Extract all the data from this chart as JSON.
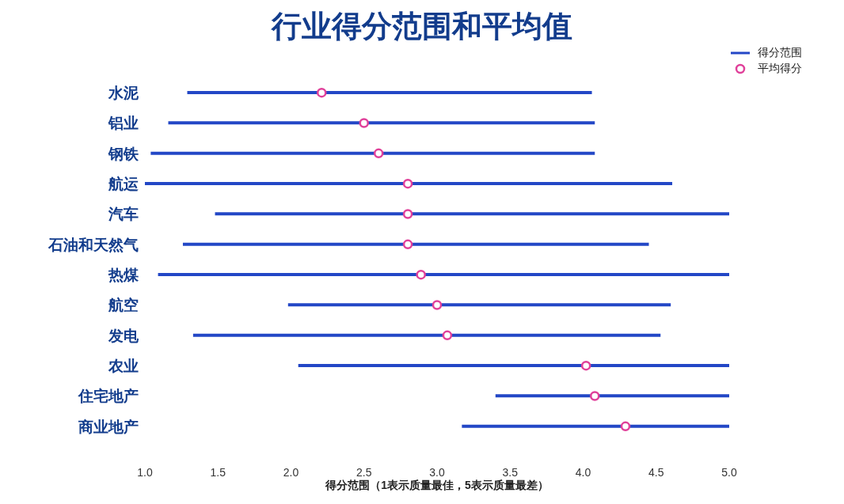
{
  "chart_data": {
    "type": "bar",
    "orientation": "horizontal",
    "title": "行业得分范围和平均值",
    "xlabel": "得分范围（1表示质量最佳，5表示质量最差）",
    "categories": [
      "水泥",
      "铝业",
      "钢铁",
      "航运",
      "汽车",
      "石油和天然气",
      "热煤",
      "航空",
      "发电",
      "农业",
      "住宅地产",
      "商业地产"
    ],
    "series": [
      {
        "name": "得分范围",
        "color": "#2347c6",
        "base": [
          1.29,
          1.16,
          1.04,
          1.0,
          1.48,
          1.26,
          1.09,
          1.98,
          1.33,
          2.05,
          3.4,
          3.17
        ],
        "values": [
          2.77,
          2.92,
          3.04,
          3.61,
          3.52,
          3.19,
          3.91,
          2.62,
          3.2,
          2.95,
          1.6,
          1.83
        ]
      },
      {
        "type": "scatter",
        "name": "平均得分",
        "color": "#e0409a",
        "marker": "circle",
        "values": [
          2.21,
          2.5,
          2.6,
          2.8,
          2.8,
          2.8,
          2.89,
          3.0,
          3.07,
          4.02,
          4.08,
          4.29
        ]
      }
    ],
    "xlim": [
      1,
      5
    ],
    "xticks": [
      {
        "value": 1,
        "label": "1.0"
      },
      {
        "value": 1.5,
        "label": "1.5"
      },
      {
        "value": 2,
        "label": "2.0"
      },
      {
        "value": 2.5,
        "label": "2.5"
      },
      {
        "value": 3,
        "label": "3.0"
      },
      {
        "value": 3.5,
        "label": "3.5"
      },
      {
        "value": 4,
        "label": "4.0"
      },
      {
        "value": 4.5,
        "label": "4.5"
      },
      {
        "value": 5,
        "label": "5.0"
      }
    ],
    "grid": false,
    "legend": "top right"
  }
}
